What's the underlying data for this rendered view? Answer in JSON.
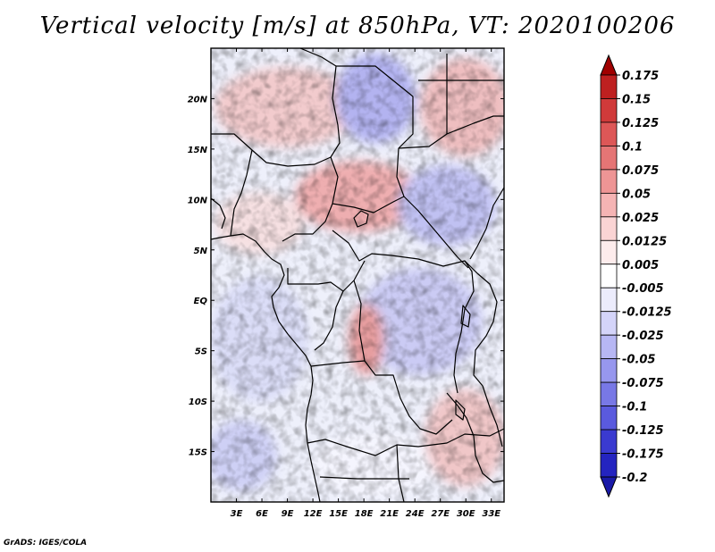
{
  "title": "Vertical velocity [m/s] at 850hPa, VT: 2020100206",
  "credit": "GrADS: IGES/COLA",
  "chart_data": {
    "type": "heatmap",
    "variable": "Vertical velocity",
    "units": "m/s",
    "level": "850hPa",
    "valid_time": "2020100206",
    "lon_range": [
      0,
      34.5
    ],
    "lat_range": [
      -20,
      25
    ],
    "x_ticks": [
      "3E",
      "6E",
      "9E",
      "12E",
      "15E",
      "18E",
      "21E",
      "24E",
      "27E",
      "30E",
      "33E"
    ],
    "x_tick_values": [
      3,
      6,
      9,
      12,
      15,
      18,
      21,
      24,
      27,
      30,
      33
    ],
    "y_ticks": [
      "20N",
      "15N",
      "10N",
      "5N",
      "EQ",
      "5S",
      "10S",
      "15S"
    ],
    "y_tick_values": [
      20,
      15,
      10,
      5,
      0,
      -5,
      -10,
      -15
    ],
    "colorbar": {
      "labels": [
        "0.175",
        "0.15",
        "0.125",
        "0.1",
        "0.075",
        "0.05",
        "0.025",
        "0.0125",
        "0.005",
        "-0.005",
        "-0.0125",
        "-0.025",
        "-0.05",
        "-0.075",
        "-0.1",
        "-0.125",
        "-0.175",
        "-0.2"
      ],
      "colors": [
        "#a00000",
        "#be2020",
        "#d03a3a",
        "#dd5757",
        "#e57575",
        "#ee9595",
        "#f5b4b4",
        "#fad4d4",
        "#fdecec",
        "#ffffff",
        "#ececfc",
        "#d4d4f9",
        "#b7b7f4",
        "#9797ee",
        "#7878e6",
        "#5a5ade",
        "#3a3ad0",
        "#2424c0",
        "#1a1aa8"
      ]
    }
  }
}
